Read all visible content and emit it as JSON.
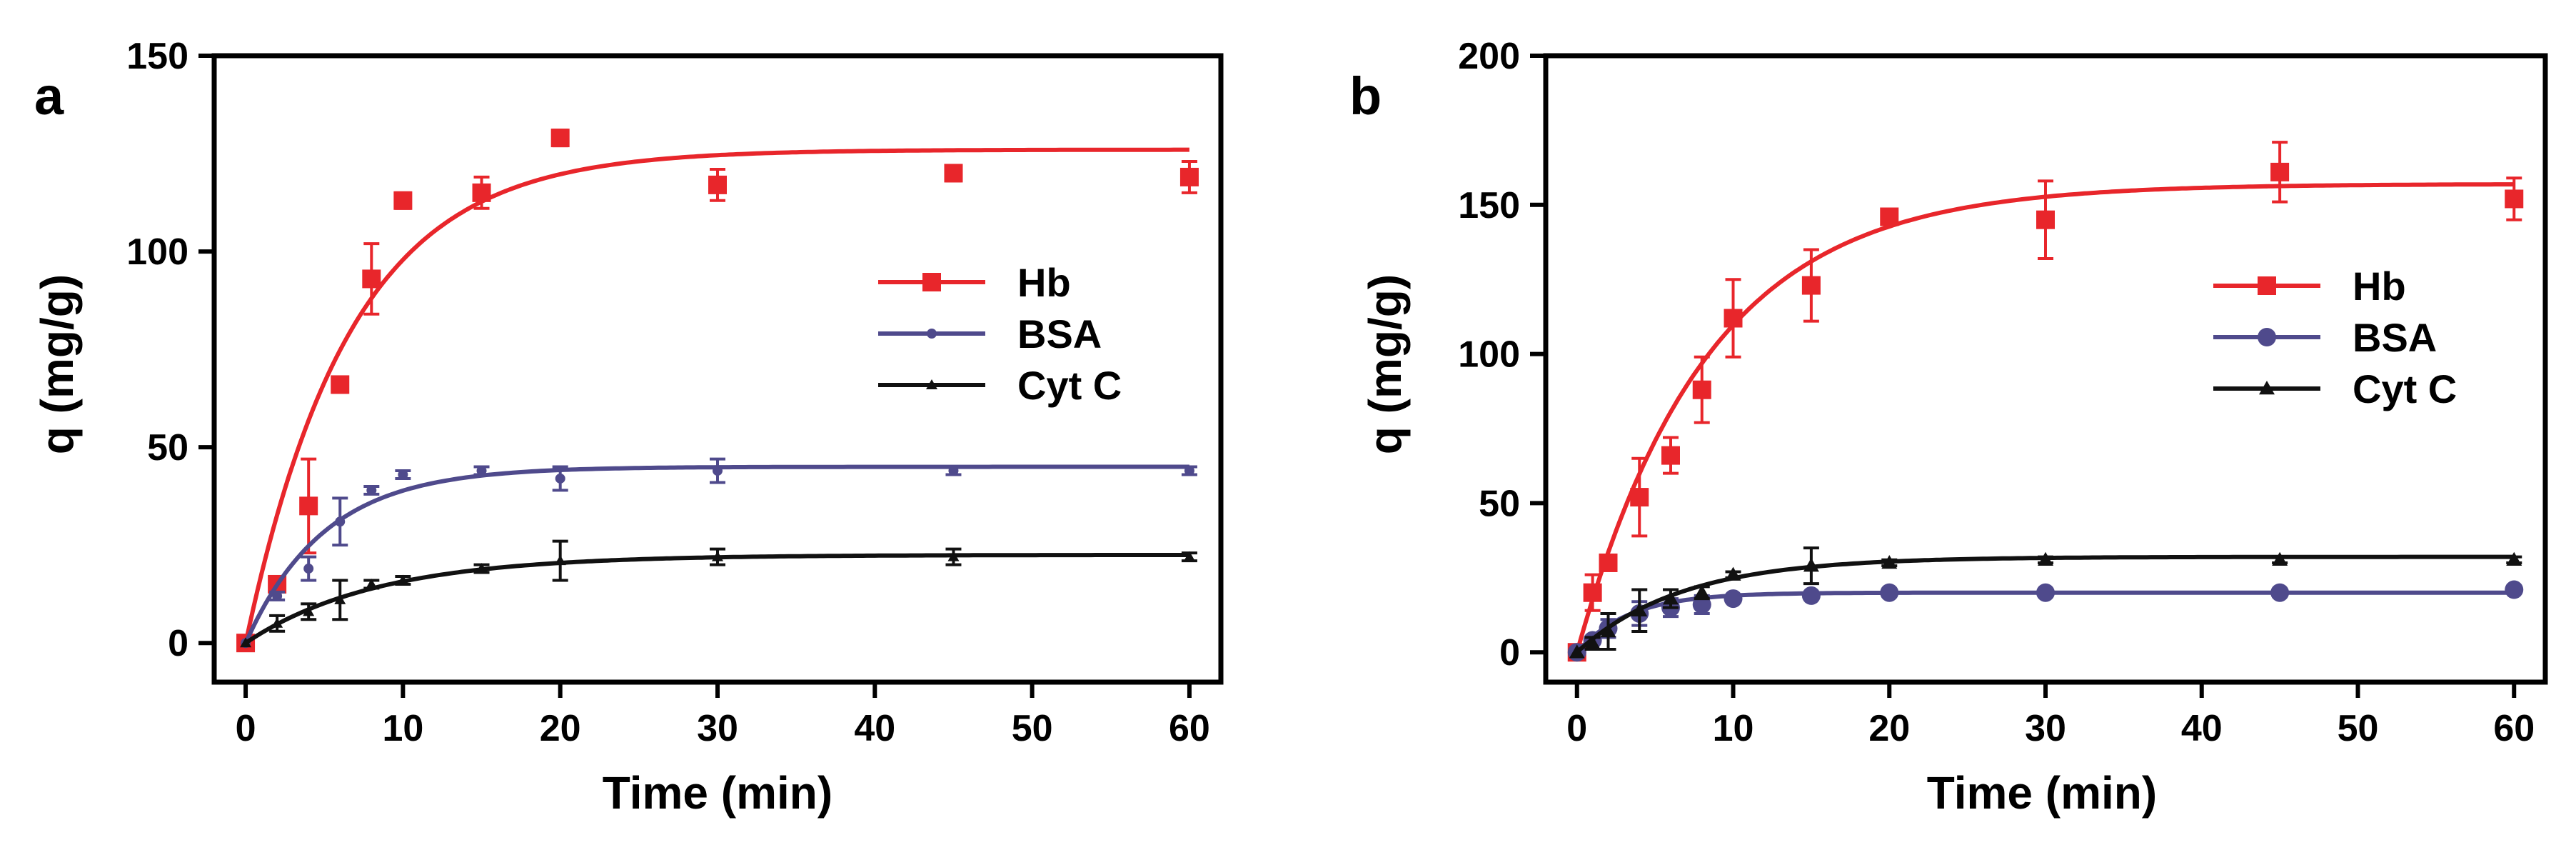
{
  "chart_data": [
    {
      "panel": "a",
      "type": "line",
      "xlabel": "Time (min)",
      "ylabel": "q (mg/g)",
      "xlim": [
        -2,
        62
      ],
      "ylim": [
        -10,
        150
      ],
      "xticks": [
        0,
        10,
        20,
        30,
        40,
        50,
        60
      ],
      "yticks": [
        0,
        50,
        100,
        150
      ],
      "legend_position": "center-right",
      "series": [
        {
          "name": "Hb",
          "color": "#e8262b",
          "marker": "square",
          "x": [
            0,
            2,
            4,
            6,
            8,
            10,
            15,
            20,
            30,
            45,
            60
          ],
          "y": [
            0,
            15,
            35,
            66,
            93,
            113,
            115,
            129,
            117,
            120,
            119
          ],
          "err": [
            0,
            2,
            12,
            2,
            9,
            2,
            4,
            2,
            4,
            2,
            4
          ],
          "fit": {
            "qmax": 126,
            "k": 0.15
          }
        },
        {
          "name": "BSA",
          "color": "#4f4a8c",
          "marker": "circle",
          "x": [
            0,
            2,
            4,
            6,
            8,
            10,
            15,
            20,
            30,
            45,
            60
          ],
          "y": [
            0,
            12,
            19,
            31,
            39,
            43,
            44,
            42,
            44,
            44,
            44
          ],
          "err": [
            0,
            1,
            3,
            6,
            1,
            1,
            1,
            3,
            3,
            1,
            1
          ],
          "fit": {
            "qmax": 45,
            "k": 0.2
          }
        },
        {
          "name": "Cyt C",
          "color": "#111111",
          "marker": "triangle",
          "x": [
            0,
            2,
            4,
            6,
            8,
            10,
            15,
            20,
            30,
            45,
            60
          ],
          "y": [
            0,
            5,
            8,
            11,
            15,
            16,
            19,
            21,
            22,
            22,
            22
          ],
          "err": [
            0,
            2,
            2,
            5,
            1,
            1,
            1,
            5,
            2,
            2,
            1
          ],
          "fit": {
            "qmax": 22.5,
            "k": 0.12
          }
        }
      ]
    },
    {
      "panel": "b",
      "type": "line",
      "xlabel": "Time (min)",
      "ylabel": "q (mg/g)",
      "xlim": [
        -2,
        62
      ],
      "ylim": [
        -10,
        200
      ],
      "xticks": [
        0,
        10,
        20,
        30,
        40,
        50,
        60
      ],
      "yticks": [
        0,
        50,
        100,
        150,
        200
      ],
      "legend_position": "center-right",
      "series": [
        {
          "name": "Hb",
          "color": "#e8262b",
          "marker": "square",
          "x": [
            0,
            1,
            2,
            4,
            6,
            8,
            10,
            15,
            20,
            30,
            45,
            60
          ],
          "y": [
            0,
            20,
            30,
            52,
            66,
            88,
            112,
            123,
            146,
            145,
            161,
            152
          ],
          "err": [
            0,
            6,
            2,
            13,
            6,
            11,
            13,
            12,
            2,
            13,
            10,
            7
          ],
          "fit": {
            "qmax": 157,
            "k": 0.12
          }
        },
        {
          "name": "BSA",
          "color": "#4f4a8c",
          "marker": "circle",
          "x": [
            0,
            1,
            2,
            4,
            6,
            8,
            10,
            15,
            20,
            30,
            45,
            60
          ],
          "y": [
            0,
            4,
            8,
            13,
            15,
            16,
            18,
            19,
            20,
            20,
            20,
            21
          ],
          "err": [
            0,
            1,
            3,
            4,
            3,
            3,
            1,
            1,
            1,
            1,
            1,
            1
          ],
          "fit": {
            "qmax": 20,
            "k": 0.3
          }
        },
        {
          "name": "Cyt C",
          "color": "#111111",
          "marker": "triangle",
          "x": [
            0,
            1,
            2,
            4,
            6,
            8,
            10,
            15,
            20,
            30,
            45,
            60
          ],
          "y": [
            0,
            3,
            7,
            14,
            18,
            20,
            26,
            29,
            30,
            31,
            31,
            31
          ],
          "err": [
            0,
            2,
            6,
            7,
            3,
            2,
            1,
            6,
            1,
            1,
            1,
            1
          ],
          "fit": {
            "qmax": 32,
            "k": 0.15
          }
        }
      ]
    }
  ]
}
